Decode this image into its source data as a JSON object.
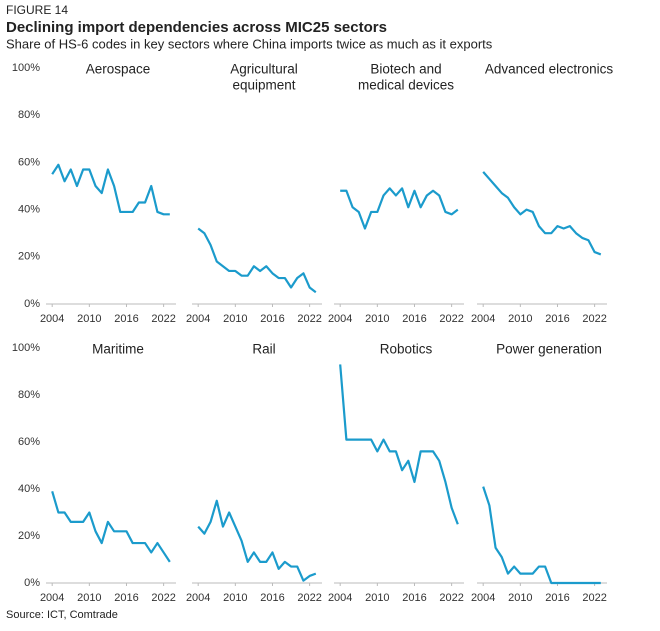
{
  "figure_label": "FIGURE 14",
  "title": "Declining import dependencies across MIC25 sectors",
  "subtitle": "Share of HS-6 codes in key sectors where China imports twice as much as it exports",
  "source": "Source: ICT, Comtrade",
  "chart_data": [
    {
      "type": "line",
      "title": [
        "Aerospace"
      ],
      "color": "#1b9bcc",
      "x": [
        2004,
        2005,
        2006,
        2007,
        2008,
        2009,
        2010,
        2011,
        2012,
        2013,
        2014,
        2015,
        2016,
        2017,
        2018,
        2019,
        2020,
        2021,
        2022,
        2023
      ],
      "values": [
        55,
        59,
        52,
        57,
        50,
        57,
        57,
        50,
        47,
        57,
        50,
        39,
        39,
        39,
        43,
        43,
        50,
        39,
        38,
        38
      ],
      "xlim": [
        2003,
        2024
      ],
      "xticks": [
        2004,
        2010,
        2016,
        2022
      ],
      "ylim": [
        0,
        100
      ],
      "yticks": [
        {
          "value": 0,
          "label": "0%"
        },
        {
          "value": 20,
          "label": "20%"
        },
        {
          "value": 40,
          "label": "40%"
        },
        {
          "value": 60,
          "label": "60%"
        },
        {
          "value": 80,
          "label": "80%"
        },
        {
          "value": 100,
          "label": "100%"
        }
      ]
    },
    {
      "type": "line",
      "title": [
        "Agricultural",
        "equipment"
      ],
      "color": "#1b9bcc",
      "x": [
        2004,
        2005,
        2006,
        2007,
        2008,
        2009,
        2010,
        2011,
        2012,
        2013,
        2014,
        2015,
        2016,
        2017,
        2018,
        2019,
        2020,
        2021,
        2022,
        2023
      ],
      "values": [
        32,
        30,
        25,
        18,
        16,
        14,
        14,
        12,
        12,
        16,
        14,
        16,
        13,
        11,
        11,
        7,
        11,
        13,
        7,
        5
      ],
      "xlim": [
        2003,
        2024
      ],
      "xticks": [
        2004,
        2010,
        2016,
        2022
      ],
      "ylim": [
        0,
        100
      ]
    },
    {
      "type": "line",
      "title": [
        "Biotech and",
        "medical devices"
      ],
      "color": "#1b9bcc",
      "x": [
        2004,
        2005,
        2006,
        2007,
        2008,
        2009,
        2010,
        2011,
        2012,
        2013,
        2014,
        2015,
        2016,
        2017,
        2018,
        2019,
        2020,
        2021,
        2022,
        2023
      ],
      "values": [
        48,
        48,
        41,
        39,
        32,
        39,
        39,
        46,
        49,
        46,
        49,
        41,
        48,
        41,
        46,
        48,
        46,
        39,
        38,
        40
      ],
      "xlim": [
        2003,
        2024
      ],
      "xticks": [
        2004,
        2010,
        2016,
        2022
      ],
      "ylim": [
        0,
        100
      ]
    },
    {
      "type": "line",
      "title": [
        "Advanced electronics"
      ],
      "color": "#1b9bcc",
      "x": [
        2004,
        2005,
        2006,
        2007,
        2008,
        2009,
        2010,
        2011,
        2012,
        2013,
        2014,
        2015,
        2016,
        2017,
        2018,
        2019,
        2020,
        2021,
        2022,
        2023
      ],
      "values": [
        56,
        53,
        50,
        47,
        45,
        41,
        38,
        40,
        39,
        33,
        30,
        30,
        33,
        32,
        33,
        30,
        28,
        27,
        22,
        21
      ],
      "xlim": [
        2003,
        2024
      ],
      "xticks": [
        2004,
        2010,
        2016,
        2022
      ],
      "ylim": [
        0,
        100
      ]
    },
    {
      "type": "line",
      "title": [
        "Maritime"
      ],
      "color": "#1b9bcc",
      "x": [
        2004,
        2005,
        2006,
        2007,
        2008,
        2009,
        2010,
        2011,
        2012,
        2013,
        2014,
        2015,
        2016,
        2017,
        2018,
        2019,
        2020,
        2021,
        2022,
        2023
      ],
      "values": [
        39,
        30,
        30,
        26,
        26,
        26,
        30,
        22,
        17,
        26,
        22,
        22,
        22,
        17,
        17,
        17,
        13,
        17,
        13,
        9
      ],
      "xlim": [
        2003,
        2024
      ],
      "xticks": [
        2004,
        2010,
        2016,
        2022
      ],
      "ylim": [
        0,
        100
      ],
      "yticks": [
        {
          "value": 0,
          "label": "0%"
        },
        {
          "value": 20,
          "label": "20%"
        },
        {
          "value": 40,
          "label": "40%"
        },
        {
          "value": 60,
          "label": "60%"
        },
        {
          "value": 80,
          "label": "80%"
        },
        {
          "value": 100,
          "label": "100%"
        }
      ]
    },
    {
      "type": "line",
      "title": [
        "Rail"
      ],
      "color": "#1b9bcc",
      "x": [
        2004,
        2005,
        2006,
        2007,
        2008,
        2009,
        2010,
        2011,
        2012,
        2013,
        2014,
        2015,
        2016,
        2017,
        2018,
        2019,
        2020,
        2021,
        2022,
        2023
      ],
      "values": [
        24,
        21,
        26,
        35,
        24,
        30,
        24,
        18,
        9,
        13,
        9,
        9,
        13,
        6,
        9,
        7,
        7,
        1,
        3,
        4
      ],
      "xlim": [
        2003,
        2024
      ],
      "xticks": [
        2004,
        2010,
        2016,
        2022
      ],
      "ylim": [
        0,
        100
      ]
    },
    {
      "type": "line",
      "title": [
        "Robotics"
      ],
      "color": "#1b9bcc",
      "x": [
        2004,
        2005,
        2006,
        2007,
        2008,
        2009,
        2010,
        2011,
        2012,
        2013,
        2014,
        2015,
        2016,
        2017,
        2018,
        2019,
        2020,
        2021,
        2022,
        2023
      ],
      "values": [
        93,
        61,
        61,
        61,
        61,
        61,
        56,
        61,
        56,
        56,
        48,
        52,
        43,
        56,
        56,
        56,
        52,
        43,
        32,
        25
      ],
      "xlim": [
        2003,
        2024
      ],
      "xticks": [
        2004,
        2010,
        2016,
        2022
      ],
      "ylim": [
        0,
        100
      ]
    },
    {
      "type": "line",
      "title": [
        "Power generation"
      ],
      "color": "#1b9bcc",
      "x": [
        2004,
        2005,
        2006,
        2007,
        2008,
        2009,
        2010,
        2011,
        2012,
        2013,
        2014,
        2015,
        2016,
        2017,
        2018,
        2019,
        2020,
        2021,
        2022,
        2023
      ],
      "values": [
        41,
        33,
        15,
        11,
        4,
        7,
        4,
        4,
        4,
        7,
        7,
        0,
        0,
        0,
        0,
        0,
        0,
        0,
        0,
        0
      ],
      "xlim": [
        2003,
        2024
      ],
      "xticks": [
        2004,
        2010,
        2016,
        2022
      ],
      "ylim": [
        0,
        100
      ]
    }
  ]
}
